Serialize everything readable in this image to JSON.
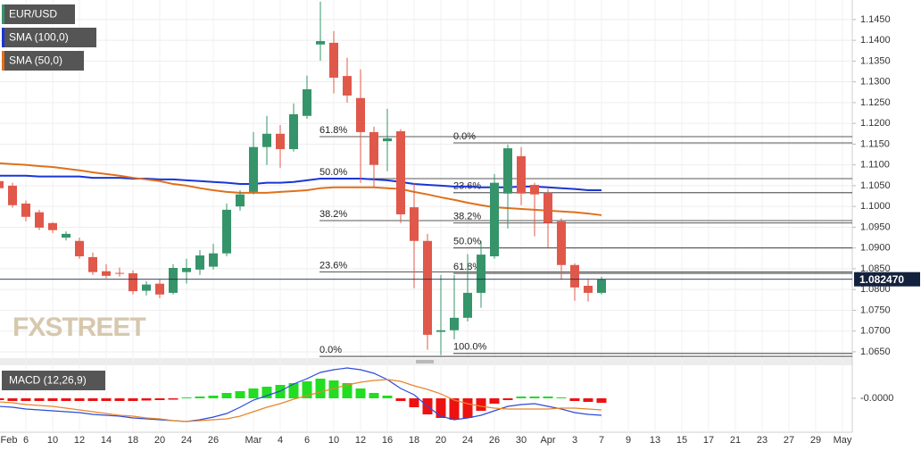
{
  "chart_data": [
    {
      "type": "candlestick",
      "name": "EUR/USD",
      "watermark": "FXSTREET",
      "up_color": "#35946a",
      "down_color": "#e0584a",
      "categories": [
        "Feb",
        null,
        "6",
        null,
        "10",
        null,
        "12",
        null,
        "14",
        null,
        "18",
        null,
        "20",
        null,
        "24",
        null,
        "26",
        null,
        null,
        "Mar",
        null,
        "4",
        null,
        "6",
        null,
        "10",
        null,
        "12",
        null,
        "16",
        null,
        "18",
        null,
        "20",
        null,
        "24",
        null,
        "26",
        null,
        "30",
        null,
        "Apr",
        null,
        "3",
        null,
        "7",
        null,
        "9",
        null,
        "13",
        null,
        "15",
        null,
        "17",
        null,
        "21",
        null,
        "23",
        null,
        "27",
        null,
        "29",
        null,
        "May"
      ],
      "open": [
        1.1061,
        1.105,
        1.1007,
        1.0986,
        1.096,
        1.0925,
        1.0917,
        1.0878,
        1.0844,
        1.084,
        1.0839,
        1.0797,
        1.0814,
        1.0792,
        1.0842,
        1.0848,
        1.0855,
        1.0887,
        1.1,
        1.1035,
        1.1143,
        1.1175,
        1.1138,
        1.1218,
        1.139,
        1.1394,
        1.1314,
        1.1261,
        1.1179,
        1.1157,
        1.1181,
        1.0998,
        1.0917,
        1.0698,
        1.0702,
        1.0732,
        1.0792,
        1.088,
        1.1031,
        1.1121,
        1.1052,
        1.1033,
        1.0964,
        1.0859,
        1.0809,
        1.0792,
        null,
        null,
        null,
        null,
        null,
        null,
        null,
        null,
        null,
        null,
        null,
        null,
        null,
        null,
        null,
        null,
        null,
        null
      ],
      "high": [
        1.1067,
        1.1057,
        1.1014,
        1.0992,
        1.0962,
        1.094,
        1.0925,
        1.0889,
        1.0861,
        1.0853,
        1.0846,
        1.082,
        1.0824,
        1.0861,
        1.0874,
        1.0895,
        1.091,
        1.1007,
        1.1039,
        1.1179,
        1.1218,
        1.1196,
        1.1248,
        1.1315,
        1.1493,
        1.1422,
        1.1358,
        1.133,
        1.1192,
        1.1235,
        1.1186,
        1.1057,
        1.0934,
        1.0835,
        1.0835,
        1.0885,
        1.0917,
        1.1078,
        1.1149,
        1.1143,
        1.1057,
        1.1042,
        1.0971,
        1.0863,
        1.0824,
        1.0831,
        null,
        null,
        null,
        null,
        null,
        null,
        null,
        null,
        null,
        null,
        null,
        null,
        null,
        null,
        null,
        null,
        null,
        null
      ],
      "low": [
        1.104,
        1.0997,
        1.0964,
        1.0943,
        1.0936,
        1.0918,
        1.0874,
        1.0835,
        1.0827,
        1.0831,
        1.0788,
        1.0786,
        1.0779,
        1.0788,
        1.0814,
        1.0835,
        1.0848,
        1.088,
        1.099,
        1.1029,
        1.11,
        1.1093,
        1.1132,
        1.1211,
        1.1351,
        1.1272,
        1.125,
        1.1057,
        1.1046,
        1.1085,
        1.096,
        1.0803,
        1.0655,
        1.0642,
        1.068,
        1.0723,
        1.0756,
        1.0874,
        1.0947,
        1.1003,
        1.0928,
        1.09,
        1.0824,
        1.0773,
        1.0771,
        1.0788,
        null,
        null,
        null,
        null,
        null,
        null,
        null,
        null,
        null,
        null,
        null,
        null,
        null,
        null,
        null,
        null,
        null,
        null
      ],
      "close": [
        1.1044,
        1.1003,
        1.0975,
        1.0949,
        1.0943,
        1.0934,
        1.088,
        1.0842,
        1.0833,
        1.0838,
        1.0796,
        1.0812,
        1.0788,
        1.0852,
        1.0852,
        1.0882,
        1.0887,
        1.0992,
        1.1029,
        1.1143,
        1.1175,
        1.1138,
        1.1222,
        1.1282,
        1.1398,
        1.131,
        1.1267,
        1.1179,
        1.11,
        1.1164,
        1.0981,
        1.0917,
        1.0691,
        1.0702,
        1.0732,
        1.0792,
        1.0884,
        1.1057,
        1.114,
        1.1031,
        1.1029,
        1.096,
        1.0859,
        1.0805,
        1.0792,
        1.0825,
        null,
        null,
        null,
        null,
        null,
        null,
        null,
        null,
        null,
        null,
        null,
        null,
        null,
        null,
        null,
        null,
        null,
        null
      ],
      "series": [
        {
          "name": "SMA (100,0)",
          "color": "#1a35d4",
          "values": [
            1.1074,
            1.1074,
            1.1074,
            1.1072,
            1.1072,
            1.1072,
            1.1072,
            1.1069,
            1.1069,
            1.1069,
            1.1067,
            1.1067,
            1.1065,
            1.1065,
            1.1063,
            1.1061,
            1.1059,
            1.1057,
            1.1054,
            1.1054,
            1.1057,
            1.1057,
            1.1059,
            1.1063,
            1.1067,
            1.1067,
            1.1067,
            1.1067,
            1.1065,
            1.1063,
            1.1059,
            1.1054,
            1.1052,
            1.105,
            1.1048,
            1.1048,
            1.1046,
            1.1046,
            1.1046,
            1.1048,
            1.1048,
            1.1046,
            1.1044,
            1.1042,
            1.1039,
            1.1039,
            null,
            null,
            null,
            null,
            null,
            null,
            null,
            null,
            null,
            null,
            null,
            null,
            null,
            null,
            null,
            null,
            null,
            null
          ]
        },
        {
          "name": "SMA (50,0)",
          "color": "#e0701c",
          "values": [
            1.1104,
            1.1102,
            1.11,
            1.1097,
            1.1095,
            1.1091,
            1.1087,
            1.1082,
            1.1078,
            1.1074,
            1.1069,
            1.1065,
            1.1061,
            1.1054,
            1.105,
            1.1044,
            1.1039,
            1.1035,
            1.1033,
            1.1033,
            1.1033,
            1.1035,
            1.1037,
            1.1039,
            1.1044,
            1.1046,
            1.1046,
            1.1046,
            1.1046,
            1.1044,
            1.1042,
            1.1035,
            1.1029,
            1.1022,
            1.1016,
            1.1009,
            1.1003,
            1.0998,
            1.0996,
            1.0994,
            1.0992,
            1.099,
            1.0988,
            1.0986,
            1.0983,
            1.0979,
            null,
            null,
            null,
            null,
            null,
            null,
            null,
            null,
            null,
            null,
            null,
            null,
            null,
            null,
            null,
            null,
            null,
            null
          ]
        }
      ],
      "fibonacci": [
        {
          "levels": [
            {
              "text": "0.0%",
              "price": 1.0639
            },
            {
              "text": "23.6%",
              "price": 1.0842
            },
            {
              "text": "38.2%",
              "price": 1.0966
            },
            {
              "text": "50.0%",
              "price": 1.1067
            },
            {
              "text": "61.8%",
              "price": 1.1168
            }
          ]
        },
        {
          "levels": [
            {
              "text": "100.0%",
              "price": 1.0646
            },
            {
              "text": "61.8%",
              "price": 1.0839
            },
            {
              "text": "50.0%",
              "price": 1.09
            },
            {
              "text": "38.2%",
              "price": 1.096
            },
            {
              "text": "23.6%",
              "price": 1.1033
            },
            {
              "text": "0.0%",
              "price": 1.1153
            }
          ]
        }
      ],
      "last_price": {
        "value": 1.08247,
        "label": "1.082470"
      },
      "ylim": [
        1.0637,
        1.1497
      ],
      "yticks": [
        {
          "value": 1.145,
          "label": "1.1450"
        },
        {
          "value": 1.14,
          "label": "1.1400"
        },
        {
          "value": 1.135,
          "label": "1.1350"
        },
        {
          "value": 1.13,
          "label": "1.1300"
        },
        {
          "value": 1.125,
          "label": "1.1250"
        },
        {
          "value": 1.12,
          "label": "1.1200"
        },
        {
          "value": 1.115,
          "label": "1.1150"
        },
        {
          "value": 1.11,
          "label": "1.1100"
        },
        {
          "value": 1.105,
          "label": "1.1050"
        },
        {
          "value": 1.1,
          "label": "1.1000"
        },
        {
          "value": 1.095,
          "label": "1.0950"
        },
        {
          "value": 1.09,
          "label": "1.0900"
        },
        {
          "value": 1.085,
          "label": "1.0850"
        },
        {
          "value": 1.08,
          "label": "1.0800"
        },
        {
          "value": 1.075,
          "label": "1.0750"
        },
        {
          "value": 1.07,
          "label": "1.0700"
        },
        {
          "value": 1.065,
          "label": "1.0650"
        }
      ],
      "grid": true
    },
    {
      "type": "macd",
      "title": "MACD (12,26,9)",
      "up_color": "#22dd22",
      "down_color": "#ee1111",
      "histogram": [
        -0.0008,
        -0.0012,
        -0.0012,
        -0.0012,
        -0.0012,
        -0.0012,
        -0.0012,
        -0.0012,
        -0.0012,
        -0.0012,
        -0.0012,
        -0.001,
        -0.0008,
        -0.0006,
        0.0004,
        0.0008,
        0.0012,
        0.0024,
        0.0032,
        0.0044,
        0.0052,
        0.006,
        0.0068,
        0.0076,
        0.0088,
        0.008,
        0.0068,
        0.0044,
        0.0024,
        0.0012,
        -0.0012,
        -0.004,
        -0.0072,
        -0.0088,
        -0.0096,
        -0.0088,
        -0.0056,
        -0.0024,
        -0.0008,
        0.0008,
        0.0008,
        0.0008,
        0.0004,
        -0.0012,
        -0.0016,
        -0.002,
        null,
        null,
        null,
        null,
        null,
        null,
        null,
        null,
        null,
        null,
        null,
        null,
        null,
        null,
        null,
        null,
        null,
        null
      ],
      "lines": [
        {
          "color": "#2b4bd9",
          "values": [
            -0.0036,
            -0.004,
            -0.0048,
            -0.0052,
            -0.0056,
            -0.006,
            -0.0064,
            -0.0072,
            -0.0076,
            -0.008,
            -0.0088,
            -0.0092,
            -0.0096,
            -0.01,
            -0.0104,
            -0.0096,
            -0.0084,
            -0.0068,
            -0.004,
            -0.0008,
            0.0012,
            0.0032,
            0.0064,
            0.0088,
            0.0116,
            0.0128,
            0.0136,
            0.0128,
            0.0112,
            0.0084,
            0.0044,
            0.0016,
            -0.0036,
            -0.008,
            -0.0096,
            -0.0088,
            -0.0076,
            -0.0056,
            -0.0036,
            -0.0028,
            -0.0024,
            -0.0036,
            -0.0048,
            -0.0064,
            -0.0072,
            -0.0076,
            null,
            null,
            null,
            null,
            null,
            null,
            null,
            null,
            null,
            null,
            null,
            null,
            null,
            null,
            null,
            null,
            null,
            null
          ]
        },
        {
          "color": "#e8852a",
          "values": [
            -0.0016,
            -0.002,
            -0.0028,
            -0.0032,
            -0.0036,
            -0.0044,
            -0.0052,
            -0.006,
            -0.0068,
            -0.0076,
            -0.008,
            -0.0088,
            -0.0092,
            -0.01,
            -0.0104,
            -0.01,
            -0.0096,
            -0.0092,
            -0.008,
            -0.006,
            -0.004,
            -0.0024,
            -0.0004,
            0.0012,
            0.0028,
            0.0044,
            0.006,
            0.0072,
            0.008,
            0.0084,
            0.0076,
            0.0056,
            0.004,
            0.002,
            -0.0008,
            -0.0024,
            -0.0036,
            -0.0044,
            -0.0048,
            -0.0048,
            -0.0048,
            -0.0048,
            -0.0044,
            -0.0044,
            -0.0048,
            -0.0052,
            null,
            null,
            null,
            null,
            null,
            null,
            null,
            null,
            null,
            null,
            null,
            null,
            null,
            null,
            null,
            null,
            null,
            null
          ]
        }
      ],
      "ylim": [
        -0.0144,
        0.0144
      ],
      "yticks": [
        {
          "value": 0,
          "label": "-0.0000"
        }
      ]
    }
  ]
}
